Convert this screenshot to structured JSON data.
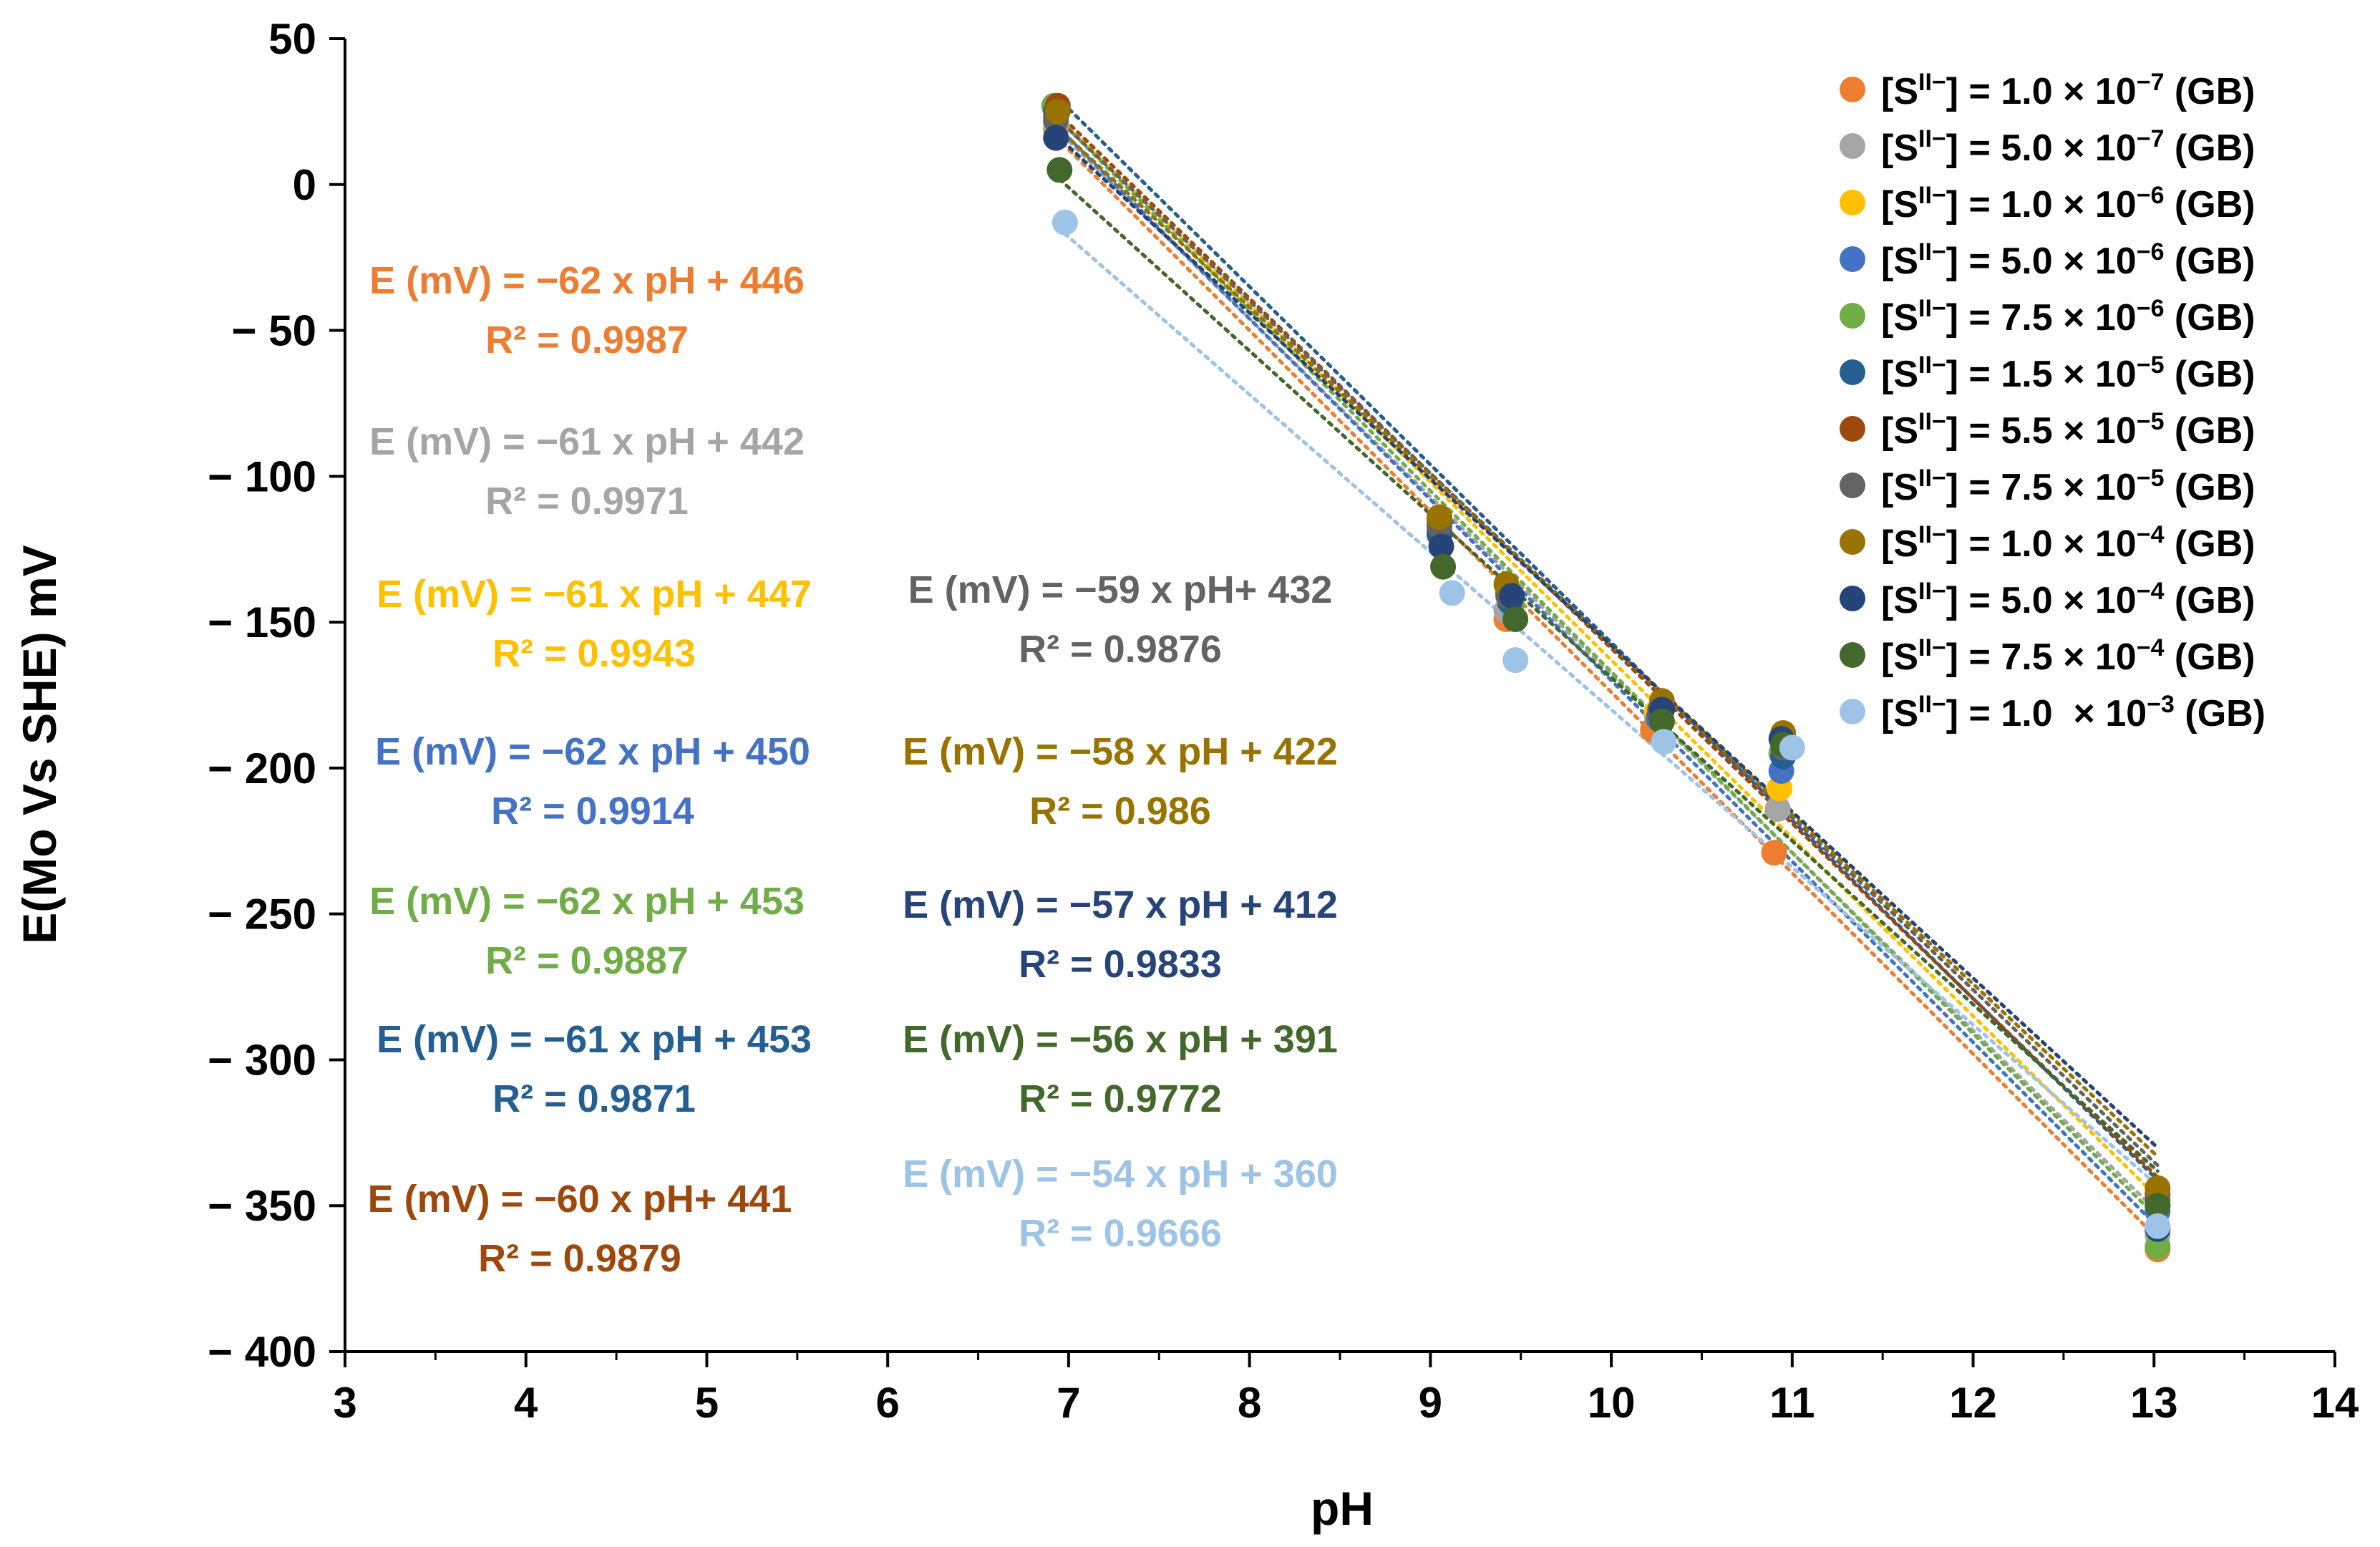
{
  "chart_data": {
    "type": "scatter",
    "xlabel": "pH",
    "ylabel": "E(Mo Vs SHE) mV",
    "xlim": [
      3,
      14
    ],
    "ylim": [
      -400,
      50
    ],
    "x_ticks": [
      "3",
      "4",
      "5",
      "6",
      "7",
      "8",
      "9",
      "10",
      "11",
      "12",
      "13",
      "14"
    ],
    "y_ticks": [
      "50",
      "0",
      "− 50",
      "− 100",
      "− 150",
      "− 200",
      "− 250",
      "− 300",
      "− 350",
      "− 400"
    ],
    "grid": false,
    "legend_position": "top-right",
    "trendline_style": "dotted",
    "series": [
      {
        "legend": {
          "pre": "[S",
          "sup1": "II−",
          "mid": "] = 1.0 × 10",
          "sup2": "−7",
          "post": " (GB)"
        },
        "color": "#ED7D31",
        "x": [
          6.93,
          9.05,
          9.42,
          10.23,
          10.9,
          13.02
        ],
        "y": [
          19,
          -116,
          -149,
          -187,
          -229,
          -365
        ],
        "fit": {
          "slope": -62,
          "intercept": 446
        },
        "equation": "E (mV) = −62 x pH + 446",
        "r2": "R² = 0.9987"
      },
      {
        "legend": {
          "pre": "[S",
          "sup1": "II−",
          "mid": "] = 5.0 × 10",
          "sup2": "−7",
          "post": " (GB)"
        },
        "color": "#A5A5A5",
        "x": [
          6.93,
          9.05,
          9.42,
          10.25,
          10.92,
          13.02
        ],
        "y": [
          21,
          -114,
          -146,
          -182,
          -214,
          -360
        ],
        "fit": {
          "slope": -61,
          "intercept": 442
        },
        "equation": "E (mV) = −61 x pH + 442",
        "r2": "R² = 0.9971"
      },
      {
        "legend": {
          "pre": "[S",
          "sup1": "II−",
          "mid": "] = 1.0 × 10",
          "sup2": "−6",
          "post": " (GB)"
        },
        "color": "#FFC000",
        "x": [
          6.93,
          9.05,
          9.43,
          10.25,
          10.93,
          13.02
        ],
        "y": [
          24,
          -118,
          -141,
          -181,
          -207,
          -358
        ],
        "fit": {
          "slope": -61,
          "intercept": 447
        },
        "equation": "E (mV) = −61 x pH + 447",
        "r2": "R² = 0.9943"
      },
      {
        "legend": {
          "pre": "[S",
          "sup1": "II−",
          "mid": "] = 5.0 × 10",
          "sup2": "−6",
          "post": " (GB)"
        },
        "color": "#4472C4",
        "x": [
          6.93,
          9.05,
          9.44,
          10.26,
          10.94,
          13.02
        ],
        "y": [
          23,
          -119,
          -142,
          -183,
          -201,
          -352
        ],
        "fit": {
          "slope": -62,
          "intercept": 450
        },
        "equation": "E (mV) = −62 x pH + 450",
        "r2": "R² = 0.9914"
      },
      {
        "legend": {
          "pre": "[S",
          "sup1": "II−",
          "mid": "] = 7.5 × 10",
          "sup2": "−6",
          "post": " (GB)"
        },
        "color": "#70AD47",
        "x": [
          6.92,
          9.05,
          9.45,
          10.27,
          10.94,
          13.02
        ],
        "y": [
          27,
          -117,
          -144,
          -180,
          -195,
          -364
        ],
        "fit": {
          "slope": -62,
          "intercept": 453
        },
        "equation": "E (mV) = −62 x pH + 453",
        "r2": "R² = 0.9887"
      },
      {
        "legend": {
          "pre": "[S",
          "sup1": "II−",
          "mid": "] = 1.5 × 10",
          "sup2": "−5",
          "post": " (GB)"
        },
        "color": "#255E91",
        "x": [
          6.93,
          9.05,
          9.44,
          10.27,
          10.95,
          13.02
        ],
        "y": [
          25,
          -120,
          -143,
          -181,
          -196,
          -350
        ],
        "fit": {
          "slope": -61,
          "intercept": 453
        },
        "equation": "E (mV) = −61 x pH + 453",
        "r2": "R² = 0.9871"
      },
      {
        "legend": {
          "pre": "[S",
          "sup1": "II−",
          "mid": "] = 5.5 × 10",
          "sup2": "−5",
          "post": " (GB)"
        },
        "color": "#9E480E",
        "x": [
          6.94,
          9.05,
          9.43,
          10.28,
          10.95,
          13.02
        ],
        "y": [
          27,
          -115,
          -140,
          -178,
          -189,
          -346
        ],
        "fit": {
          "slope": -60,
          "intercept": 441
        },
        "equation": "E (mV) = −60 x pH+ 441",
        "r2": "R² = 0.9879"
      },
      {
        "legend": {
          "pre": "[S",
          "sup1": "II−",
          "mid": "] = 7.5 × 10",
          "sup2": "−5",
          "post": " (GB)"
        },
        "color": "#636363",
        "x": [
          6.93,
          9.05,
          9.43,
          10.27,
          10.95,
          13.02
        ],
        "y": [
          22,
          -117,
          -141,
          -180,
          -193,
          -348
        ],
        "fit": {
          "slope": -59,
          "intercept": 432
        },
        "equation": "E (mV) = −59 x pH+ 432",
        "r2": "R² = 0.9876"
      },
      {
        "legend": {
          "pre": "[S",
          "sup1": "II−",
          "mid": "] = 1.0 × 10",
          "sup2": "−4",
          "post": " (GB)"
        },
        "color": "#997300",
        "x": [
          6.94,
          9.05,
          9.42,
          10.28,
          10.95,
          13.02
        ],
        "y": [
          25,
          -114,
          -137,
          -177,
          -188,
          -344
        ],
        "fit": {
          "slope": -58,
          "intercept": 422
        },
        "equation": "E (mV) = −58 x pH + 422",
        "r2": "R² = 0.986"
      },
      {
        "legend": {
          "pre": "[S",
          "sup1": "II−",
          "mid": "] = 5.0 × 10",
          "sup2": "−4",
          "post": " (GB)"
        },
        "color": "#264478",
        "x": [
          6.93,
          9.06,
          9.45,
          10.28,
          10.94,
          13.02
        ],
        "y": [
          16,
          -124,
          -141,
          -180,
          -190,
          -358
        ],
        "fit": {
          "slope": -57,
          "intercept": 412
        },
        "equation": "E (mV) = −57 x pH + 412",
        "r2": "R² = 0.9833"
      },
      {
        "legend": {
          "pre": "[S",
          "sup1": "II−",
          "mid": "] = 7.5 × 10",
          "sup2": "−4",
          "post": " (GB)"
        },
        "color": "#43682B",
        "x": [
          6.95,
          9.07,
          9.47,
          10.28,
          10.95,
          13.02
        ],
        "y": [
          5,
          -131,
          -149,
          -184,
          -192,
          -350
        ],
        "fit": {
          "slope": -56,
          "intercept": 391
        },
        "equation": "E (mV) = −56 x pH + 391",
        "r2": "R² = 0.9772"
      },
      {
        "legend": {
          "pre": "[S",
          "sup1": "II−",
          "mid": "] = 1.0  × 10",
          "sup2": "−3",
          "post": " (GB)"
        },
        "color": "#9DC3E6",
        "x": [
          6.98,
          9.12,
          9.47,
          10.29,
          11.0,
          13.02
        ],
        "y": [
          -13,
          -140,
          -163,
          -191,
          -193,
          -357
        ],
        "fit": {
          "slope": -54,
          "intercept": 360
        },
        "equation": "E (mV) = −54 x pH + 360",
        "r2": "R² = 0.9666"
      }
    ]
  }
}
